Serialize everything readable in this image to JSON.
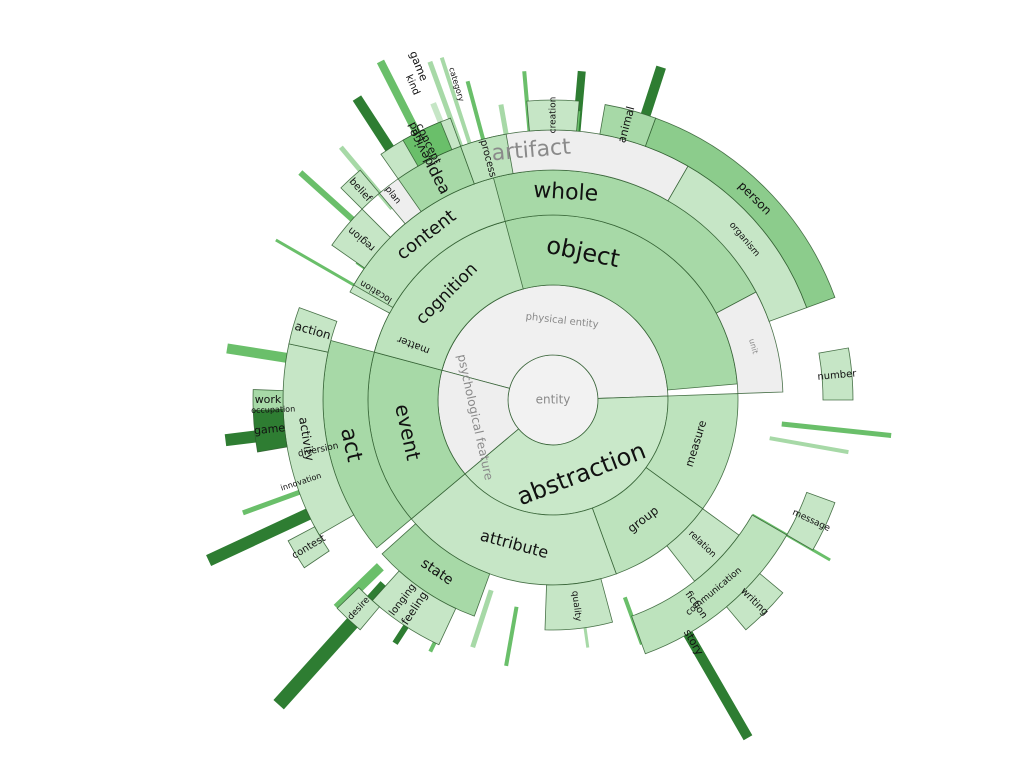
{
  "palette": {
    "level0": "#b8b8b8",
    "level1": "#eeeeee",
    "level2": "#c6e6c6",
    "level3": "#a7d9a7",
    "level4": "#bde3bd",
    "level5": "#c9e8c9",
    "dark": "#2e7d32",
    "mid": "#6abf6a",
    "muted": "#e6e6e6",
    "text_dark": "#1a1a1a",
    "text_muted": "#8a8a8a"
  },
  "root": {
    "label": "entity",
    "fill": "#f2f2f2",
    "text": "#8a8a8a"
  },
  "ring1": [
    {
      "label": "physical entity",
      "a0": -75,
      "a1": 88,
      "fill": "#f0f0f0",
      "text": "#8a8a8a",
      "size": 10
    },
    {
      "label": "abstraction",
      "a0": 88,
      "a1": 230,
      "fill": "#c9e8c9",
      "text": "#111111",
      "size": 24
    },
    {
      "label": "psychological feature",
      "a0": 230,
      "a1": 285,
      "fill": "#eeeeee",
      "text": "#8a8a8a",
      "size": 12
    }
  ],
  "ring2": [
    {
      "label": "matter",
      "a0": -75,
      "a1": -62,
      "fill": "#c6e6c6",
      "text": "#111111",
      "size": 10
    },
    {
      "label": "object",
      "a0": -62,
      "a1": 85,
      "fill": "#a7d9a7",
      "text": "#111111",
      "size": 24
    },
    {
      "label": "measure",
      "a0": 88,
      "a1": 126,
      "fill": "#bde3bd",
      "text": "#111111",
      "size": 11
    },
    {
      "label": "group",
      "a0": 126,
      "a1": 160,
      "fill": "#bde3bd",
      "text": "#111111",
      "size": 12
    },
    {
      "label": "attribute",
      "a0": 160,
      "a1": 230,
      "fill": "#c6e6c6",
      "text": "#111111",
      "size": 16
    },
    {
      "label": "event",
      "a0": 230,
      "a1": 285,
      "fill": "#a7d9a7",
      "text": "#111111",
      "size": 20
    },
    {
      "label": "cognition",
      "a0": 285,
      "a1": 345,
      "fill": "#bde3bd",
      "text": "#111111",
      "size": 17
    }
  ],
  "ring3": [
    {
      "label": "location",
      "a0": -62,
      "a1": -55,
      "fill": "#c6e6c6",
      "text": "#111111",
      "size": 9
    },
    {
      "label": "whole",
      "a0": -55,
      "a1": 62,
      "fill": "#a7d9a7",
      "text": "#111111",
      "size": 22
    },
    {
      "label": "unit",
      "a0": 62,
      "a1": 88,
      "fill": "#eeeeee",
      "text": "#8a8a8a",
      "size": 8
    },
    {
      "label": "relation",
      "a0": 126,
      "a1": 142,
      "fill": "#c6e6c6",
      "text": "#111111",
      "size": 9
    },
    {
      "label": "quality",
      "a0": 165,
      "a1": 182,
      "fill": "#c6e6c6",
      "text": "#111111",
      "size": 9
    },
    {
      "label": "state",
      "a0": 200,
      "a1": 228,
      "fill": "#a7d9a7",
      "text": "#111111",
      "size": 14
    },
    {
      "label": "act",
      "a0": 230,
      "a1": 285,
      "fill": "#a7d9a7",
      "text": "#111111",
      "size": 22
    },
    {
      "label": "content",
      "a0": 300,
      "a1": 345,
      "fill": "#bde3bd",
      "text": "#111111",
      "size": 18
    }
  ],
  "ring4": [
    {
      "label": "region",
      "a0": -55,
      "a1": -45,
      "fill": "#c6e6c6",
      "text": "#111111",
      "size": 10
    },
    {
      "label": "artifact",
      "a0": -40,
      "a1": 30,
      "fill": "#eeeeee",
      "text": "#8a8a8a",
      "size": 22
    },
    {
      "label": "organism",
      "a0": 30,
      "a1": 70,
      "fill": "#c6e6c6",
      "text": "#111111",
      "size": 9
    },
    {
      "label": "communication",
      "a0": 120,
      "a1": 160,
      "fill": "#bde3bd",
      "text": "#111111",
      "size": 9
    },
    {
      "label": "feeling",
      "a0": 205,
      "a1": 222,
      "fill": "#c6e6c6",
      "text": "#111111",
      "size": 11
    },
    {
      "label": "activity",
      "a0": 240,
      "a1": 282,
      "fill": "#c6e6c6",
      "text": "#111111",
      "size": 12
    },
    {
      "label": "action",
      "a0": 282,
      "a1": 290,
      "fill": "#c6e6c6",
      "text": "#111111",
      "size": 12
    },
    {
      "label": "idea",
      "a0": 325,
      "a1": 340,
      "fill": "#a7d9a7",
      "text": "#111111",
      "size": 16
    },
    {
      "label": "process",
      "a0": 340,
      "a1": 350,
      "fill": "#bde3bd",
      "text": "#111111",
      "size": 10
    }
  ],
  "ring5": [
    {
      "label": "person",
      "a0": 20,
      "a1": 70,
      "fill": "#8ccc8c",
      "text": "#111111",
      "size": 12
    },
    {
      "label": "animal",
      "a0": 10,
      "a1": 20,
      "fill": "#a7d9a7",
      "text": "#111111",
      "size": 11
    },
    {
      "label": "device",
      "a0": -35,
      "a1": -20,
      "fill": "#c6e6c6",
      "text": "#111111",
      "size": 12
    },
    {
      "label": "creation",
      "a0": -5,
      "a1": 5,
      "fill": "#c6e6c6",
      "text": "#111111",
      "size": 9
    },
    {
      "label": "number",
      "a0": 80,
      "a1": 90,
      "fill": "#c6e6c6",
      "text": "#111111",
      "size": 10
    },
    {
      "label": "message",
      "a0": 110,
      "a1": 120,
      "fill": "#c6e6c6",
      "text": "#111111",
      "size": 9
    },
    {
      "label": "writing",
      "a0": 130,
      "a1": 140,
      "fill": "#c6e6c6",
      "text": "#111111",
      "size": 10
    },
    {
      "label": "game",
      "a0": 260,
      "a1": 268,
      "fill": "#2e7d32",
      "text": "#111111",
      "size": 11
    },
    {
      "label": "work",
      "a0": 268,
      "a1": 272,
      "fill": "#a7d9a7",
      "text": "#111111",
      "size": 11
    },
    {
      "label": "concept",
      "a0": 330,
      "a1": 338,
      "fill": "#6abf6a",
      "text": "#111111",
      "size": 11
    },
    {
      "label": "belief",
      "a0": 315,
      "a1": 320,
      "fill": "#c6e6c6",
      "text": "#111111",
      "size": 10
    },
    {
      "label": "contest",
      "a0": 236,
      "a1": 242,
      "fill": "#c6e6c6",
      "text": "#111111",
      "size": 10
    },
    {
      "label": "desire",
      "a0": 220,
      "a1": 226,
      "fill": "#c6e6c6",
      "text": "#111111",
      "size": 9
    }
  ],
  "labels_outer": [
    {
      "label": "part",
      "a": 333,
      "r": 300,
      "size": 11
    },
    {
      "label": "kind",
      "a": 336,
      "r": 345,
      "size": 10
    },
    {
      "label": "category",
      "a": 343,
      "r": 330,
      "size": 8
    },
    {
      "label": "plan",
      "a": 322,
      "r": 260,
      "size": 9
    },
    {
      "label": "game",
      "a": 338,
      "r": 360,
      "size": 11
    },
    {
      "label": "fiction",
      "a": 145,
      "r": 250,
      "size": 10
    },
    {
      "label": "story",
      "a": 150,
      "r": 280,
      "size": 11
    },
    {
      "label": "longing",
      "a": 217,
      "r": 250,
      "size": 10
    },
    {
      "label": "occupation",
      "a": 268,
      "r": 280,
      "size": 8
    },
    {
      "label": "diversion",
      "a": 258,
      "r": 240,
      "size": 9
    },
    {
      "label": "innovation",
      "a": 252,
      "r": 265,
      "size": 8
    }
  ],
  "spikes": [
    {
      "a": -55,
      "r0": 170,
      "r1": 240,
      "w": 3,
      "c": "#6abf6a"
    },
    {
      "a": -18,
      "r0": 250,
      "r1": 360,
      "w": 4,
      "c": "#a7d9a7"
    },
    {
      "a": -22,
      "r0": 240,
      "r1": 320,
      "w": 6,
      "c": "#c6e6c6"
    },
    {
      "a": -32,
      "r0": 250,
      "r1": 300,
      "w": 4,
      "c": "#6abf6a"
    },
    {
      "a": 5,
      "r0": 260,
      "r1": 330,
      "w": 8,
      "c": "#2e7d32"
    },
    {
      "a": 18,
      "r0": 300,
      "r1": 350,
      "w": 10,
      "c": "#2e7d32"
    },
    {
      "a": 96,
      "r0": 230,
      "r1": 340,
      "w": 5,
      "c": "#6abf6a"
    },
    {
      "a": 100,
      "r0": 220,
      "r1": 300,
      "w": 4,
      "c": "#a7d9a7"
    },
    {
      "a": 120,
      "r0": 230,
      "r1": 320,
      "w": 3,
      "c": "#6abf6a"
    },
    {
      "a": 150,
      "r0": 260,
      "r1": 390,
      "w": 10,
      "c": "#2e7d32"
    },
    {
      "a": 160,
      "r0": 210,
      "r1": 260,
      "w": 4,
      "c": "#6abf6a"
    },
    {
      "a": 172,
      "r0": 210,
      "r1": 250,
      "w": 3,
      "c": "#a7d9a7"
    },
    {
      "a": 190,
      "r0": 210,
      "r1": 270,
      "w": 4,
      "c": "#6abf6a"
    },
    {
      "a": 198,
      "r0": 200,
      "r1": 260,
      "w": 5,
      "c": "#a7d9a7"
    },
    {
      "a": 206,
      "r0": 200,
      "r1": 280,
      "w": 4,
      "c": "#6abf6a"
    },
    {
      "a": 213,
      "r0": 220,
      "r1": 290,
      "w": 6,
      "c": "#2e7d32"
    },
    {
      "a": 222,
      "r0": 250,
      "r1": 410,
      "w": 14,
      "c": "#2e7d32"
    },
    {
      "a": 226,
      "r0": 240,
      "r1": 300,
      "w": 10,
      "c": "#6abf6a"
    },
    {
      "a": 245,
      "r0": 245,
      "r1": 380,
      "w": 12,
      "c": "#2e7d32"
    },
    {
      "a": 250,
      "r0": 240,
      "r1": 330,
      "w": 5,
      "c": "#6abf6a"
    },
    {
      "a": 263,
      "r0": 240,
      "r1": 330,
      "w": 12,
      "c": "#2e7d32"
    },
    {
      "a": 279,
      "r0": 240,
      "r1": 330,
      "w": 10,
      "c": "#6abf6a"
    },
    {
      "a": 300,
      "r0": 200,
      "r1": 320,
      "w": 3,
      "c": "#6abf6a"
    },
    {
      "a": 312,
      "r0": 240,
      "r1": 340,
      "w": 6,
      "c": "#6abf6a"
    },
    {
      "a": 320,
      "r0": 250,
      "r1": 330,
      "w": 5,
      "c": "#a7d9a7"
    },
    {
      "a": 327,
      "r0": 280,
      "r1": 360,
      "w": 10,
      "c": "#2e7d32"
    },
    {
      "a": 333,
      "r0": 300,
      "r1": 380,
      "w": 8,
      "c": "#6abf6a"
    },
    {
      "a": 340,
      "r0": 250,
      "r1": 360,
      "w": 5,
      "c": "#a7d9a7"
    },
    {
      "a": 345,
      "r0": 260,
      "r1": 330,
      "w": 4,
      "c": "#6abf6a"
    },
    {
      "a": 355,
      "r0": 230,
      "r1": 330,
      "w": 4,
      "c": "#6abf6a"
    },
    {
      "a": 5,
      "r0": 260,
      "r1": 290,
      "w": 4,
      "c": "#6abf6a"
    },
    {
      "a": -10,
      "r0": 240,
      "r1": 300,
      "w": 5,
      "c": "#a7d9a7"
    }
  ]
}
